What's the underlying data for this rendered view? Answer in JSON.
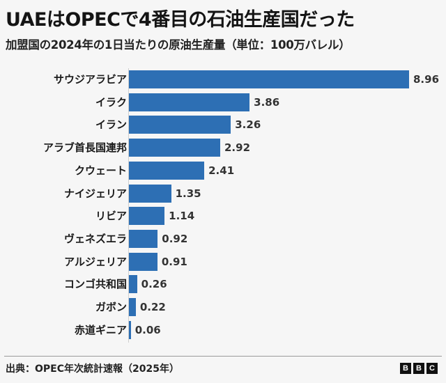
{
  "header": {
    "title": "UAEはOPECで4番目の石油生産国だった",
    "subtitle": "加盟国の2024年の1日当たりの原油生産量（単位：100万バレル）"
  },
  "footer": {
    "source": "出典：OPEC年次統計速報（2025年）",
    "logo": [
      "B",
      "B",
      "C"
    ]
  },
  "colors": {
    "bar": "#2d6fb4",
    "background": "#f6f6f6"
  },
  "chart_data": {
    "type": "bar",
    "orientation": "horizontal",
    "title": "UAEはOPECで4番目の石油生産国だった",
    "subtitle": "加盟国の2024年の1日当たりの原油生産量（単位：100万バレル）",
    "xlabel": "",
    "ylabel": "",
    "unit": "100万バレル/日",
    "categories": [
      "サウジアラビア",
      "イラク",
      "イラン",
      "アラブ首長国連邦",
      "クウェート",
      "ナイジェリア",
      "リビア",
      "ヴェネズエラ",
      "アルジェリア",
      "コンゴ共和国",
      "ガボン",
      "赤道ギニア"
    ],
    "values": [
      8.96,
      3.86,
      3.26,
      2.92,
      2.41,
      1.35,
      1.14,
      0.92,
      0.91,
      0.26,
      0.22,
      0.06
    ],
    "value_labels": [
      "8.96",
      "3.86",
      "3.26",
      "2.92",
      "2.41",
      "1.35",
      "1.14",
      "0.92",
      "0.91",
      "0.26",
      "0.22",
      "0.06"
    ],
    "xlim": [
      0,
      8.96
    ],
    "grid": false,
    "legend": null,
    "source": "出典：OPEC年次統計速報（2025年）"
  }
}
